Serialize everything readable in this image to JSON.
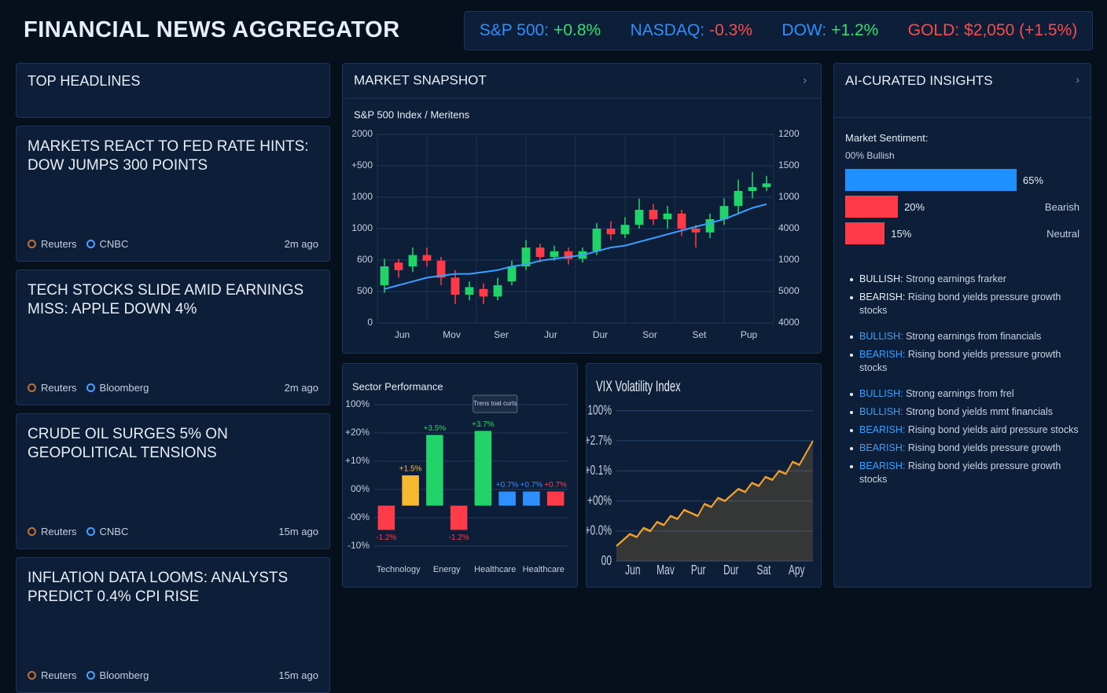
{
  "header": {
    "title": "FINANCIAL NEWS AGGREGATOR"
  },
  "tickers": [
    {
      "label": "S&P 500:",
      "change": "+0.8%",
      "label_color": "#2f8fff",
      "color": "#2ee06a"
    },
    {
      "label": "NASDAQ:",
      "change": "-0.3%",
      "label_color": "#2f8fff",
      "color": "#ff4a4a"
    },
    {
      "label": "DOW:",
      "change": "+1.2%",
      "label_color": "#2f8fff",
      "color": "#2ee06a"
    },
    {
      "label": "GOLD:",
      "change": "$2,050 (+1.5%)",
      "label_color": "#ff4a4a",
      "color": "#ff4a4a"
    }
  ],
  "headlines": {
    "title": "TOP HEADLINES",
    "items": [
      {
        "title": "MARKETS REACT TO FED RATE HINTS: DOW JUMPS 300 POINTS",
        "sources": [
          "Reuters",
          "CNBC"
        ],
        "time": "2m ago"
      },
      {
        "title": "TECH STOCKS SLIDE AMID EARNINGS MISS: APPLE DOWN 4%",
        "sources": [
          "Reuters",
          "Bloomberg"
        ],
        "time": "2m ago"
      },
      {
        "title": "CRUDE OIL SURGES 5% ON GEOPOLITICAL TENSIONS",
        "sources": [
          "Reuters",
          "CNBC"
        ],
        "time": "15m ago"
      },
      {
        "title": "INFLATION DATA LOOMS: ANALYSTS PREDICT 0.4% CPI RISE",
        "sources": [
          "Reuters",
          "Bloomberg"
        ],
        "time": "15m ago"
      }
    ]
  },
  "snapshot": {
    "title": "MARKET SNAPSHOT",
    "subtitle": "S&P 500 Index / Meritens",
    "type": "candlestick",
    "y_labels": [
      "2000",
      "+500",
      "1000",
      "1000",
      "600",
      "500",
      "0"
    ],
    "y2_labels": [
      "1200",
      "1500",
      "1000",
      "4000",
      "1000",
      "5000",
      "4000"
    ],
    "x_labels": [
      "Jun",
      "Mov",
      "Ser",
      "Jur",
      "Dur",
      "Sor",
      "Set",
      "Pup"
    ],
    "ylim": [
      0,
      100
    ],
    "open": [
      20,
      32,
      30,
      36,
      33,
      24,
      15,
      18,
      14,
      22,
      30,
      40,
      35,
      38,
      34,
      38,
      50,
      47,
      52,
      60,
      55,
      58,
      50,
      48,
      55,
      62,
      70,
      72
    ],
    "close": [
      30,
      28,
      36,
      33,
      24,
      15,
      19,
      14,
      20,
      30,
      40,
      35,
      38,
      34,
      38,
      50,
      47,
      52,
      60,
      55,
      58,
      50,
      48,
      55,
      62,
      70,
      72,
      74
    ],
    "high": [
      34,
      34,
      40,
      40,
      35,
      28,
      22,
      21,
      24,
      33,
      44,
      42,
      41,
      40,
      40,
      53,
      54,
      56,
      66,
      63,
      62,
      60,
      52,
      58,
      66,
      76,
      80,
      78
    ],
    "low": [
      16,
      24,
      27,
      30,
      20,
      10,
      12,
      10,
      12,
      20,
      28,
      32,
      33,
      31,
      32,
      36,
      44,
      45,
      50,
      52,
      50,
      46,
      40,
      45,
      52,
      58,
      66,
      70
    ],
    "average": [
      18,
      20,
      22,
      24,
      25,
      26,
      26,
      27,
      28,
      30,
      31,
      33,
      34,
      35,
      36,
      38,
      40,
      41,
      43,
      45,
      47,
      49,
      51,
      53,
      55,
      58,
      61,
      63
    ],
    "up_color": "#22d36a",
    "down_color": "#ff3b4a",
    "average_color": "#3aa0ff"
  },
  "sector": {
    "title": "Sector Performance",
    "type": "bar",
    "tooltip": "Trens toat curts",
    "y_labels": [
      "100%",
      "+20%",
      "+10%",
      "00%",
      "-00%",
      "-10%"
    ],
    "groups": [
      "Technology",
      "Energy",
      "Healthcare",
      "Healthcare"
    ],
    "ylim": [
      -2,
      5
    ],
    "values": [
      -1.2,
      1.5,
      3.5,
      -1.2,
      3.7,
      0.7,
      0.7,
      0.7
    ],
    "value_labels": [
      "-1.2%",
      "+1.5%",
      "+3.5%",
      "-1.2%",
      "+3.7%",
      "+0.7%",
      "+0.7%",
      "+0.7%"
    ],
    "colors": [
      "#ff3b4a",
      "#f5b82e",
      "#22d36a",
      "#ff3b4a",
      "#22d36a",
      "#2f8fff",
      "#2f8fff",
      "#ff3b4a"
    ]
  },
  "vix": {
    "title": "VIX Volatility Index",
    "type": "area",
    "y_labels": [
      "100%",
      "+2.7%",
      "+0.1%",
      "+00%",
      "+0.0%",
      "00"
    ],
    "x_labels": [
      "Jun",
      "Mav",
      "Pur",
      "Dur",
      "Sat",
      "Apy"
    ],
    "ylim": [
      0,
      100
    ],
    "values": [
      10,
      14,
      18,
      16,
      22,
      20,
      26,
      24,
      30,
      28,
      34,
      32,
      30,
      38,
      36,
      42,
      40,
      44,
      48,
      46,
      52,
      50,
      56,
      54,
      60,
      58,
      66,
      64,
      72,
      80
    ],
    "color": "#f0a030"
  },
  "insights": {
    "title": "AI-CURATED INSIGHTS",
    "sentiment_title": "Market Sentiment:",
    "sentiment_subtitle": "00% Bullish",
    "xlim": [
      0,
      65
    ],
    "bars": [
      {
        "value": 65,
        "value_label": "65%",
        "name": null,
        "color": "#1e90ff"
      },
      {
        "value": 20,
        "value_label": "20%",
        "name": "Bearish",
        "color": "#ff3b4a"
      },
      {
        "value": 15,
        "value_label": "15%",
        "name": "Neutral",
        "color": "#ff3b4a"
      }
    ],
    "items": [
      {
        "tag": "BULLISH:",
        "text": "Strong earnings frarker",
        "color": "#e8eef8"
      },
      {
        "tag": "BEARISH:",
        "text": "Rising bond yields pressure growth stocks",
        "color": "#e8eef8"
      },
      {
        "tag": "BULLISH:",
        "text": "Strong earnings from financials",
        "color": "#3aa0ff"
      },
      {
        "tag": "BEARISH:",
        "text": "Rising bond yields pressure growth stocks",
        "color": "#3aa0ff"
      },
      {
        "tag": "BULLISH:",
        "text": "Strong earnings from frel",
        "color": "#3aa0ff"
      },
      {
        "tag": "BULLISH:",
        "text": "Strong bond yields mmt financials",
        "color": "#3aa0ff"
      },
      {
        "tag": "BEARISH:",
        "text": "Rising bond yields aird pressure stocks",
        "color": "#3aa0ff"
      },
      {
        "tag": "BEARISH:",
        "text": "Rising bond yields pressure growth",
        "color": "#3aa0ff"
      },
      {
        "tag": "BEARISH:",
        "text": "Rising bond yields pressure growth stocks",
        "color": "#3aa0ff"
      }
    ]
  }
}
